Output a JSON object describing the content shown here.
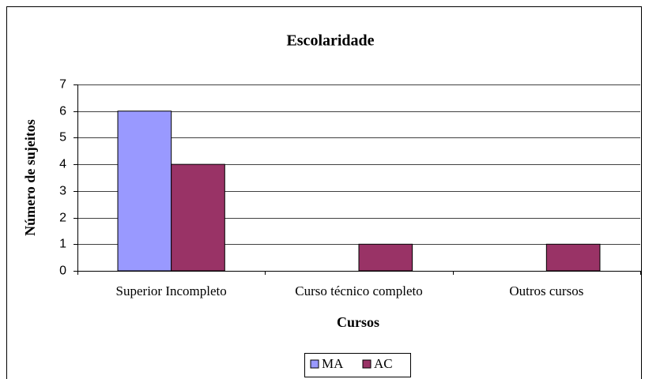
{
  "chart_data": {
    "type": "bar",
    "title": "Escolaridade",
    "x_label": "Cursos",
    "y_label": "Número de sujeitos",
    "categories": [
      "Superior Incompleto",
      "Curso técnico completo",
      "Outros cursos"
    ],
    "series": [
      {
        "name": "MA",
        "color": "#9999ff",
        "values": [
          6,
          0,
          0
        ]
      },
      {
        "name": "AC",
        "color": "#993366",
        "values": [
          4,
          1,
          1
        ]
      }
    ],
    "ylim": [
      0,
      7
    ],
    "yticks": [
      0,
      1,
      2,
      3,
      4,
      5,
      6,
      7
    ],
    "grid": true,
    "legend": "bottom"
  }
}
